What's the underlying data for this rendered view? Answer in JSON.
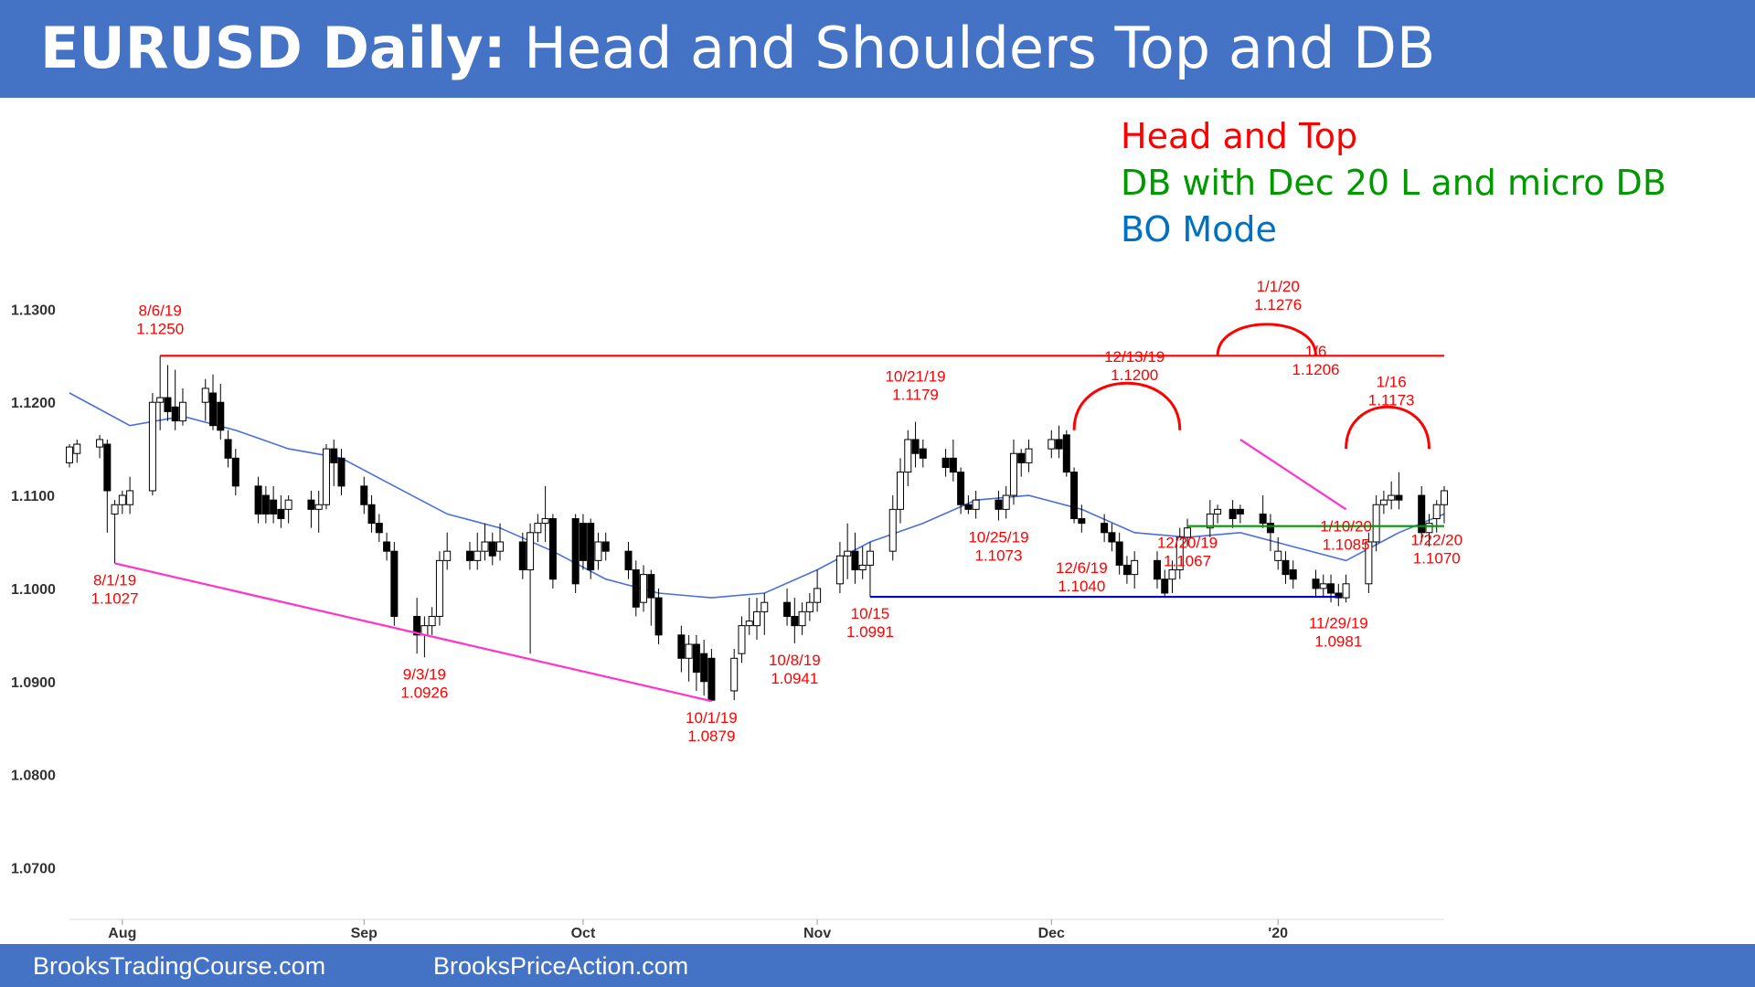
{
  "header": {
    "title_bold": "EURUSD Daily:",
    "title_rest": " Head and Shoulders Top and DB",
    "color": "#4472c4"
  },
  "legend": [
    {
      "text": "Head and Top",
      "color": "#ff0000"
    },
    {
      "text": "DB with Dec 20 L and micro DB",
      "color": "#009900"
    },
    {
      "text": "BO Mode",
      "color": "#0070c0"
    }
  ],
  "footer": {
    "left": "BrooksTradingCourse.com",
    "right": "BrooksPriceAction.com"
  },
  "chart_data": {
    "type": "candlestick",
    "title": "",
    "ylim": [
      1.067,
      1.132
    ],
    "yticks": [
      "1.0700",
      "1.0800",
      "1.0900",
      "1.1000",
      "1.1100",
      "1.1200",
      "1.1300"
    ],
    "grid": false,
    "months": [
      {
        "label": "Aug",
        "date": "2019-08-01"
      },
      {
        "label": "Sep",
        "date": "2019-09-02"
      },
      {
        "label": "Oct",
        "date": "2019-10-01"
      },
      {
        "label": "Nov",
        "date": "2019-11-01"
      },
      {
        "label": "Dec",
        "date": "2019-12-02"
      },
      {
        "label": "'20",
        "date": "2020-01-01"
      }
    ],
    "date_range": [
      "2019-07-25",
      "2020-01-23"
    ],
    "candles": [
      [
        "2019-07-25",
        1.1135,
        1.1152,
        1.1155,
        1.113
      ],
      [
        "2019-07-26",
        1.1145,
        1.1155,
        1.116,
        1.1135
      ],
      [
        "2019-07-29",
        1.1152,
        1.116,
        1.1165,
        1.114
      ],
      [
        "2019-07-30",
        1.1155,
        1.1105,
        1.116,
        1.106
      ],
      [
        "2019-07-31",
        1.108,
        1.109,
        1.1095,
        1.1027
      ],
      [
        "2019-08-01",
        1.109,
        1.11,
        1.1105,
        1.108
      ],
      [
        "2019-08-02",
        1.109,
        1.1105,
        1.112,
        1.108
      ],
      [
        "2019-08-05",
        1.1105,
        1.12,
        1.121,
        1.11
      ],
      [
        "2019-08-06",
        1.12,
        1.1205,
        1.125,
        1.117
      ],
      [
        "2019-08-07",
        1.1205,
        1.119,
        1.124,
        1.118
      ],
      [
        "2019-08-08",
        1.1195,
        1.118,
        1.1235,
        1.117
      ],
      [
        "2019-08-09",
        1.118,
        1.12,
        1.1215,
        1.1175
      ],
      [
        "2019-08-12",
        1.12,
        1.1215,
        1.1225,
        1.118
      ],
      [
        "2019-08-13",
        1.121,
        1.1175,
        1.123,
        1.117
      ],
      [
        "2019-08-14",
        1.12,
        1.117,
        1.122,
        1.116
      ],
      [
        "2019-08-15",
        1.116,
        1.114,
        1.117,
        1.113
      ],
      [
        "2019-08-16",
        1.114,
        1.111,
        1.115,
        1.11
      ],
      [
        "2019-08-19",
        1.111,
        1.108,
        1.112,
        1.107
      ],
      [
        "2019-08-20",
        1.11,
        1.108,
        1.111,
        1.107
      ],
      [
        "2019-08-21",
        1.1095,
        1.108,
        1.111,
        1.107
      ],
      [
        "2019-08-22",
        1.1085,
        1.1075,
        1.11,
        1.1065
      ],
      [
        "2019-08-23",
        1.1085,
        1.1095,
        1.11,
        1.107
      ],
      [
        "2019-08-26",
        1.1095,
        1.1085,
        1.1105,
        1.1065
      ],
      [
        "2019-08-27",
        1.1085,
        1.109,
        1.1105,
        1.106
      ],
      [
        "2019-08-28",
        1.109,
        1.115,
        1.1155,
        1.1085
      ],
      [
        "2019-08-29",
        1.115,
        1.1135,
        1.116,
        1.111
      ],
      [
        "2019-08-30",
        1.114,
        1.111,
        1.115,
        1.11
      ],
      [
        "2019-09-02",
        1.111,
        1.109,
        1.112,
        1.108
      ],
      [
        "2019-09-03",
        1.109,
        1.107,
        1.11,
        1.106
      ],
      [
        "2019-09-04",
        1.107,
        1.106,
        1.108,
        1.105
      ],
      [
        "2019-09-05",
        1.105,
        1.104,
        1.106,
        1.103
      ],
      [
        "2019-09-06",
        1.104,
        1.097,
        1.105,
        1.096
      ],
      [
        "2019-09-09",
        1.097,
        1.095,
        1.099,
        1.093
      ],
      [
        "2019-09-10",
        1.095,
        1.096,
        1.097,
        1.0926
      ],
      [
        "2019-09-11",
        1.096,
        1.097,
        1.098,
        1.095
      ],
      [
        "2019-09-12",
        1.097,
        1.103,
        1.104,
        1.096
      ],
      [
        "2019-09-13",
        1.103,
        1.104,
        1.106,
        1.102
      ],
      [
        "2019-09-16",
        1.104,
        1.103,
        1.105,
        1.102
      ],
      [
        "2019-09-17",
        1.103,
        1.104,
        1.106,
        1.102
      ],
      [
        "2019-09-18",
        1.104,
        1.105,
        1.107,
        1.103
      ],
      [
        "2019-09-19",
        1.105,
        1.1035,
        1.106,
        1.1025
      ],
      [
        "2019-09-20",
        1.104,
        1.105,
        1.107,
        1.103
      ],
      [
        "2019-09-23",
        1.105,
        1.102,
        1.106,
        1.101
      ],
      [
        "2019-09-24",
        1.102,
        1.106,
        1.107,
        1.093
      ],
      [
        "2019-09-25",
        1.106,
        1.107,
        1.108,
        1.105
      ],
      [
        "2019-09-26",
        1.107,
        1.1075,
        1.111,
        1.105
      ],
      [
        "2019-09-27",
        1.1075,
        1.101,
        1.108,
        1.1
      ],
      [
        "2019-09-30",
        1.1075,
        1.1005,
        1.108,
        1.0995
      ],
      [
        "2019-10-01",
        1.107,
        1.103,
        1.108,
        1.102
      ],
      [
        "2019-10-02",
        1.107,
        1.102,
        1.1075,
        1.101
      ],
      [
        "2019-10-03",
        1.103,
        1.105,
        1.106,
        1.102
      ],
      [
        "2019-10-04",
        1.105,
        1.104,
        1.106,
        1.103
      ],
      [
        "2019-10-07",
        1.104,
        1.102,
        1.105,
        1.101
      ],
      [
        "2019-10-08",
        1.102,
        1.098,
        1.103,
        1.097
      ],
      [
        "2019-10-09",
        1.0985,
        1.1015,
        1.1025,
        1.0975
      ],
      [
        "2019-10-10",
        1.1015,
        1.099,
        1.102,
        1.096
      ],
      [
        "2019-10-11",
        1.099,
        1.095,
        1.1,
        1.094
      ],
      [
        "2019-10-14",
        1.095,
        1.0925,
        1.096,
        1.091
      ],
      [
        "2019-10-15",
        1.0925,
        1.094,
        1.095,
        1.09
      ],
      [
        "2019-10-16",
        1.094,
        1.091,
        1.095,
        1.089
      ],
      [
        "2019-10-17",
        1.093,
        1.09,
        1.0945,
        1.0885
      ],
      [
        "2019-10-18",
        1.0925,
        1.088,
        1.0935,
        1.0879
      ],
      [
        "2019-10-21",
        1.089,
        1.0925,
        1.0935,
        1.088
      ],
      [
        "2019-10-22",
        1.093,
        1.096,
        1.097,
        1.092
      ],
      [
        "2019-10-23",
        1.096,
        1.0965,
        1.099,
        1.095
      ],
      [
        "2019-10-24",
        1.096,
        1.0975,
        1.099,
        1.0945
      ],
      [
        "2019-10-25",
        1.0975,
        1.0985,
        1.0995,
        1.095
      ],
      [
        "2019-10-28",
        1.0985,
        1.097,
        1.1,
        1.096
      ],
      [
        "2019-10-29",
        1.097,
        1.096,
        1.099,
        1.0941
      ],
      [
        "2019-10-30",
        1.096,
        1.0975,
        1.0985,
        1.095
      ],
      [
        "2019-10-31",
        1.0975,
        1.0985,
        1.0995,
        1.0965
      ],
      [
        "2019-11-01",
        1.0985,
        1.1,
        1.102,
        1.0975
      ],
      [
        "2019-11-04",
        1.1005,
        1.1035,
        1.105,
        1.0995
      ],
      [
        "2019-11-05",
        1.1035,
        1.104,
        1.107,
        1.101
      ],
      [
        "2019-11-06",
        1.104,
        1.102,
        1.106,
        1.1005
      ],
      [
        "2019-11-07",
        1.102,
        1.1025,
        1.1045,
        1.101
      ],
      [
        "2019-11-08",
        1.1025,
        1.104,
        1.105,
        1.0991
      ],
      [
        "2019-11-11",
        1.104,
        1.1085,
        1.11,
        1.103
      ],
      [
        "2019-11-12",
        1.1085,
        1.1125,
        1.114,
        1.107
      ],
      [
        "2019-11-13",
        1.1125,
        1.116,
        1.117,
        1.111
      ],
      [
        "2019-11-14",
        1.116,
        1.1145,
        1.1179,
        1.113
      ],
      [
        "2019-11-15",
        1.115,
        1.114,
        1.116,
        1.113
      ],
      [
        "2019-11-18",
        1.114,
        1.113,
        1.115,
        1.112
      ],
      [
        "2019-11-19",
        1.114,
        1.1125,
        1.116,
        1.1115
      ],
      [
        "2019-11-20",
        1.1125,
        1.109,
        1.113,
        1.108
      ],
      [
        "2019-11-21",
        1.109,
        1.1085,
        1.11,
        1.108
      ],
      [
        "2019-11-22",
        1.1085,
        1.1095,
        1.1105,
        1.1075
      ],
      [
        "2019-11-25",
        1.1095,
        1.1085,
        1.1105,
        1.1073
      ],
      [
        "2019-11-26",
        1.1085,
        1.11,
        1.111,
        1.1075
      ],
      [
        "2019-11-27",
        1.11,
        1.1145,
        1.116,
        1.109
      ],
      [
        "2019-11-28",
        1.1145,
        1.1135,
        1.115,
        1.112
      ],
      [
        "2019-11-29",
        1.1135,
        1.115,
        1.116,
        1.1125
      ],
      [
        "2019-12-02",
        1.115,
        1.116,
        1.117,
        1.114
      ],
      [
        "2019-12-03",
        1.116,
        1.115,
        1.1175,
        1.114
      ],
      [
        "2019-12-04",
        1.1165,
        1.1125,
        1.117,
        1.112
      ],
      [
        "2019-12-05",
        1.1125,
        1.1075,
        1.113,
        1.107
      ],
      [
        "2019-12-06",
        1.1075,
        1.107,
        1.109,
        1.106
      ],
      [
        "2019-12-09",
        1.107,
        1.106,
        1.108,
        1.105
      ],
      [
        "2019-12-10",
        1.106,
        1.105,
        1.107,
        1.104
      ],
      [
        "2019-12-11",
        1.105,
        1.1025,
        1.106,
        1.1015
      ],
      [
        "2019-12-12",
        1.1025,
        1.1015,
        1.1035,
        1.1005
      ],
      [
        "2019-12-13",
        1.1015,
        1.103,
        1.104,
        1.1
      ],
      [
        "2019-12-16",
        1.103,
        1.101,
        1.104,
        1.1
      ],
      [
        "2019-12-17",
        1.101,
        1.0995,
        1.102,
        1.099
      ],
      [
        "2019-12-18",
        1.101,
        1.102,
        1.103,
        1.0995
      ],
      [
        "2019-12-19",
        1.102,
        1.1055,
        1.1065,
        1.101
      ],
      [
        "2019-12-20",
        1.1055,
        1.1065,
        1.1075,
        1.1045
      ],
      [
        "2019-12-23",
        1.1065,
        1.108,
        1.1095,
        1.1055
      ],
      [
        "2019-12-24",
        1.108,
        1.1085,
        1.109,
        1.107
      ],
      [
        "2019-12-26",
        1.1085,
        1.1075,
        1.1095,
        1.1065
      ],
      [
        "2019-12-27",
        1.1085,
        1.108,
        1.109,
        1.107
      ],
      [
        "2019-12-30",
        1.108,
        1.107,
        1.11,
        1.1065
      ],
      [
        "2019-12-31",
        1.107,
        1.106,
        1.108,
        1.104
      ],
      [
        "2020-01-01",
        1.103,
        1.104,
        1.1055,
        1.102
      ],
      [
        "2020-01-02",
        1.103,
        1.1015,
        1.104,
        1.1005
      ],
      [
        "2020-01-03",
        1.102,
        1.101,
        1.103,
        1.1
      ],
      [
        "2020-01-06",
        1.101,
        1.1,
        1.102,
        1.099
      ],
      [
        "2020-01-07",
        1.1,
        1.1005,
        1.1015,
        1.099
      ],
      [
        "2020-01-08",
        1.1005,
        1.0995,
        1.1015,
        1.0985
      ],
      [
        "2020-01-09",
        1.0995,
        1.099,
        1.1005,
        1.0981
      ],
      [
        "2020-01-10",
        1.099,
        1.1005,
        1.1015,
        1.0985
      ],
      [
        "2020-01-13",
        1.1005,
        1.105,
        1.106,
        1.0995
      ],
      [
        "2020-01-14",
        1.105,
        1.109,
        1.11,
        1.104
      ],
      [
        "2020-01-15",
        1.109,
        1.1095,
        1.1105,
        1.108
      ],
      [
        "2020-01-16",
        1.1095,
        1.11,
        1.1115,
        1.1085
      ],
      [
        "2020-01-17",
        1.11,
        1.1095,
        1.1125,
        1.1085
      ],
      [
        "2020-01-20",
        1.11,
        1.106,
        1.111,
        1.105
      ],
      [
        "2020-01-21",
        1.106,
        1.107,
        1.108,
        1.1045
      ],
      [
        "2020-01-22",
        1.1075,
        1.109,
        1.1095,
        1.106
      ],
      [
        "2020-01-23",
        1.109,
        1.1105,
        1.111,
        1.107
      ]
    ],
    "ma": [
      [
        "2019-07-25",
        1.121
      ],
      [
        "2019-08-02",
        1.1175
      ],
      [
        "2019-08-09",
        1.1185
      ],
      [
        "2019-08-16",
        1.117
      ],
      [
        "2019-08-23",
        1.115
      ],
      [
        "2019-08-30",
        1.114
      ],
      [
        "2019-09-06",
        1.111
      ],
      [
        "2019-09-13",
        1.108
      ],
      [
        "2019-09-20",
        1.1065
      ],
      [
        "2019-09-27",
        1.104
      ],
      [
        "2019-10-04",
        1.101
      ],
      [
        "2019-10-11",
        1.0995
      ],
      [
        "2019-10-18",
        1.099
      ],
      [
        "2019-10-25",
        1.0995
      ],
      [
        "2019-11-01",
        1.102
      ],
      [
        "2019-11-08",
        1.105
      ],
      [
        "2019-11-15",
        1.107
      ],
      [
        "2019-11-22",
        1.1095
      ],
      [
        "2019-11-29",
        1.11
      ],
      [
        "2019-12-06",
        1.1085
      ],
      [
        "2019-12-13",
        1.106
      ],
      [
        "2019-12-20",
        1.1055
      ],
      [
        "2019-12-27",
        1.106
      ],
      [
        "2020-01-03",
        1.1045
      ],
      [
        "2020-01-10",
        1.103
      ],
      [
        "2020-01-17",
        1.106
      ],
      [
        "2020-01-23",
        1.108
      ]
    ],
    "lines": [
      {
        "color": "#ff0000",
        "from": [
          "2019-08-06",
          1.125
        ],
        "to": [
          "2020-01-23",
          1.125
        ]
      },
      {
        "color": "#ff33cc",
        "from": [
          "2019-07-31",
          1.1027
        ],
        "to": [
          "2019-10-18",
          1.0879
        ]
      },
      {
        "color": "#0000cc",
        "from": [
          "2019-11-08",
          1.0991
        ],
        "to": [
          "2020-01-09",
          1.0991
        ]
      },
      {
        "color": "#009900",
        "from": [
          "2019-12-20",
          1.1067
        ],
        "to": [
          "2020-01-23",
          1.1067
        ]
      },
      {
        "color": "#ff33cc",
        "from": [
          "2019-12-27",
          1.116
        ],
        "to": [
          "2020-01-10",
          1.1085
        ]
      }
    ],
    "arcs": [
      {
        "color": "#ff0000",
        "from": "2019-12-05",
        "to": "2019-12-19",
        "base": 1.117,
        "peak": 1.1215
      },
      {
        "color": "#ff0000",
        "from": "2019-12-24",
        "to": "2020-01-06",
        "base": 1.125,
        "peak": 1.128
      },
      {
        "color": "#ff0000",
        "from": "2020-01-10",
        "to": "2020-01-21",
        "base": 1.115,
        "peak": 1.119
      }
    ],
    "annotations": [
      {
        "date": "2019-08-06",
        "price": 1.125,
        "pos": "above",
        "lines": [
          "8/6/19",
          "1.1250"
        ]
      },
      {
        "date": "2019-07-31",
        "price": 1.1027,
        "pos": "below",
        "lines": [
          "8/1/19",
          "1.1027"
        ]
      },
      {
        "date": "2019-09-10",
        "price": 1.0926,
        "pos": "below",
        "lines": [
          "9/3/19",
          "1.0926"
        ]
      },
      {
        "date": "2019-10-18",
        "price": 1.0879,
        "pos": "below",
        "lines": [
          "10/1/19",
          "1.0879"
        ]
      },
      {
        "date": "2019-10-29",
        "price": 1.0941,
        "pos": "below",
        "lines": [
          "10/8/19",
          "1.0941"
        ]
      },
      {
        "date": "2019-11-08",
        "price": 1.0991,
        "pos": "below",
        "lines": [
          "10/15",
          "1.0991"
        ]
      },
      {
        "date": "2019-11-14",
        "price": 1.1179,
        "pos": "above",
        "lines": [
          "10/21/19",
          "1.1179"
        ]
      },
      {
        "date": "2019-11-25",
        "price": 1.1073,
        "pos": "below",
        "lines": [
          "10/25/19",
          "1.1073"
        ]
      },
      {
        "date": "2020-01-09",
        "price": 1.0981,
        "pos": "below",
        "lines": [
          "11/29/19",
          "1.0981"
        ]
      },
      {
        "date": "2019-12-06",
        "price": 1.104,
        "pos": "below",
        "lines": [
          "12/6/19",
          "1.1040"
        ]
      },
      {
        "date": "2019-12-13",
        "price": 1.12,
        "pos": "above",
        "lines": [
          "12/13/19",
          "1.1200"
        ]
      },
      {
        "date": "2019-12-20",
        "price": 1.1067,
        "pos": "below",
        "lines": [
          "12/20/19",
          "1.1067"
        ]
      },
      {
        "date": "2020-01-01",
        "price": 1.1276,
        "pos": "above",
        "lines": [
          "1/1/20",
          "1.1276"
        ]
      },
      {
        "date": "2020-01-06",
        "price": 1.1206,
        "pos": "above",
        "lines": [
          "1/6",
          "1.1206"
        ]
      },
      {
        "date": "2020-01-10",
        "price": 1.1085,
        "pos": "below",
        "lines": [
          "1/10/20",
          "1.1085"
        ]
      },
      {
        "date": "2020-01-16",
        "price": 1.1173,
        "pos": "above",
        "lines": [
          "1/16",
          "1.1173"
        ]
      },
      {
        "date": "2020-01-22",
        "price": 1.107,
        "pos": "below",
        "lines": [
          "1/22/20",
          "1.1070"
        ]
      }
    ]
  }
}
